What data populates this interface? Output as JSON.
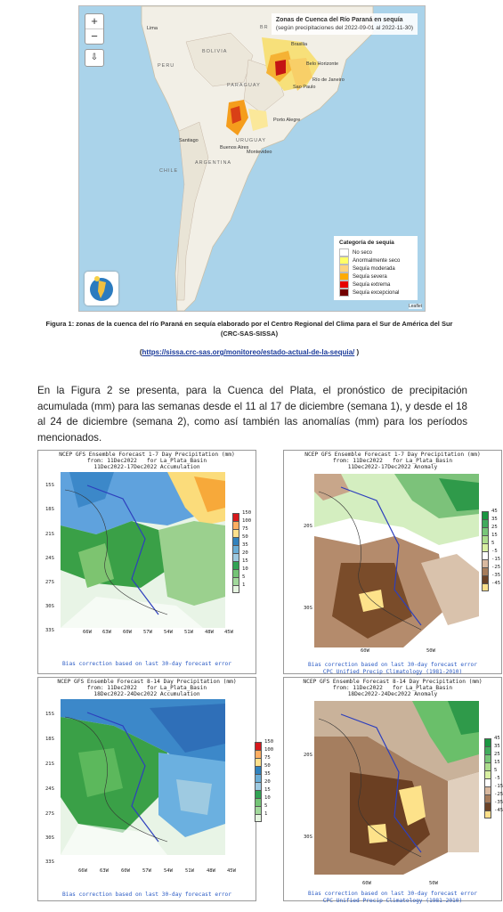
{
  "figure1": {
    "zoom_in": "+",
    "zoom_out": "−",
    "download": "⇩",
    "title": "Zonas de Cuenca del Río Paraná en sequía",
    "subtitle": "(según precipitaciones del 2022-09-01 al 2022-11-30)",
    "legend_title": "Categoría de sequía",
    "legend": [
      {
        "label": "No seco",
        "color": "#ffffff"
      },
      {
        "label": "Anormalmente seco",
        "color": "#ffff66"
      },
      {
        "label": "Sequía moderada",
        "color": "#fcd37f"
      },
      {
        "label": "Sequía severa",
        "color": "#ffaa00"
      },
      {
        "label": "Sequía extrema",
        "color": "#e60000"
      },
      {
        "label": "Sequía excepcional",
        "color": "#730000"
      }
    ],
    "attribution": "Leaflet",
    "places": [
      "Lima",
      "BOLIVIA",
      "PARAGUAY",
      "Brasilia",
      "Belo Horizonte",
      "Río de Janeiro",
      "Sao Paulo",
      "Porto Alegre",
      "Santiago",
      "Buenos Aires",
      "Montevideo",
      "URUGUAY",
      "ARGENTINA",
      "CHILE",
      "PERU",
      "BR"
    ]
  },
  "caption": {
    "text": "Figura 1: zonas de la cuenca del río Paraná en sequía elaborado por el Centro Regional del Clima para el Sur de América del Sur (CRC-SAS-SISSA)",
    "link_open": "(",
    "link": "https://sissa.crc-sas.org/monitoreo/estado-actual-de-la-sequia/",
    "link_close": " )"
  },
  "paragraph": "En la Figura 2 se presenta, para la Cuenca del Plata, el pronóstico de precipitación acumulada (mm) para las semanas desde el 11 al 17 de diciembre (semana 1), y desde el 18 al 24 de diciembre (semana 2), como así también las anomalías (mm) para los períodos mencionados.",
  "panels": [
    {
      "title": "NCEP GFS Ensemble Forecast 1-7 Day Precipitation (mm)\nfrom: 11Dec2022   for La_Plata_Basin\n11Dec2022-17Dec2022 Accumulation",
      "footer": "Bias correction based on last 30-day forecast error",
      "lats": [
        "15S",
        "18S",
        "21S",
        "24S",
        "27S",
        "30S",
        "33S"
      ],
      "lons": [
        "66W",
        "63W",
        "60W",
        "57W",
        "54W",
        "51W",
        "48W",
        "45W"
      ],
      "scale": [
        "150",
        "100",
        "75",
        "50",
        "35",
        "20",
        "15",
        "10",
        "5",
        "1"
      ],
      "scale_colors": [
        "#d7191c",
        "#fdae61",
        "#fee08b",
        "#3182bd",
        "#6baed6",
        "#9ecae1",
        "#31a354",
        "#74c476",
        "#a1d99b",
        "#e5f5e0"
      ]
    },
    {
      "title": "NCEP GFS Ensemble Forecast 1-7 Day Precipitation (mm)\nfrom: 11Dec2022   for La_Plata_Basin\n11Dec2022-17Dec2022 Anomaly",
      "footer": "Bias correction based on last 30-day forecast error\nCPC Unified Precip Climatology (1981-2010)",
      "lats": [
        "20S",
        "30S"
      ],
      "lons": [
        "60W",
        "50W"
      ],
      "scale": [
        "45",
        "35",
        "25",
        "15",
        "5",
        "-5",
        "-15",
        "-25",
        "-35",
        "-45"
      ],
      "scale_colors": [
        "#1a9641",
        "#41ab5d",
        "#78c679",
        "#addd8e",
        "#d9f0a3",
        "#ffffff",
        "#d8b9a0",
        "#a67c5b",
        "#6b4226",
        "#fee08b"
      ]
    },
    {
      "title": "NCEP GFS Ensemble Forecast 8-14 Day Precipitation (mm)\nfrom: 11Dec2022   for La_Plata_Basin\n18Dec2022-24Dec2022 Accumulation",
      "footer": "Bias correction based on last 30-day forecast error",
      "lats": [
        "15S",
        "18S",
        "21S",
        "24S",
        "27S",
        "30S",
        "33S"
      ],
      "lons": [
        "66W",
        "63W",
        "60W",
        "57W",
        "54W",
        "51W",
        "48W",
        "45W"
      ],
      "scale": [
        "150",
        "100",
        "75",
        "50",
        "35",
        "20",
        "15",
        "10",
        "5",
        "1"
      ],
      "scale_colors": [
        "#d7191c",
        "#fdae61",
        "#fee08b",
        "#3182bd",
        "#6baed6",
        "#9ecae1",
        "#31a354",
        "#74c476",
        "#a1d99b",
        "#e5f5e0"
      ]
    },
    {
      "title": "NCEP GFS Ensemble Forecast 8-14 Day Precipitation (mm)\nfrom: 11Dec2022   for La_Plata_Basin\n18Dec2022-24Dec2022 Anomaly",
      "footer": "Bias correction based on last 30-day forecast error\nCPC Unified Precip Climatology (1981-2010)",
      "lats": [
        "20S",
        "30S"
      ],
      "lons": [
        "60W",
        "50W"
      ],
      "scale": [
        "45",
        "35",
        "25",
        "15",
        "5",
        "-5",
        "-15",
        "-25",
        "-35",
        "-45"
      ],
      "scale_colors": [
        "#1a9641",
        "#41ab5d",
        "#78c679",
        "#addd8e",
        "#d9f0a3",
        "#ffffff",
        "#d8b9a0",
        "#a67c5b",
        "#6b4226",
        "#fee08b"
      ]
    }
  ]
}
